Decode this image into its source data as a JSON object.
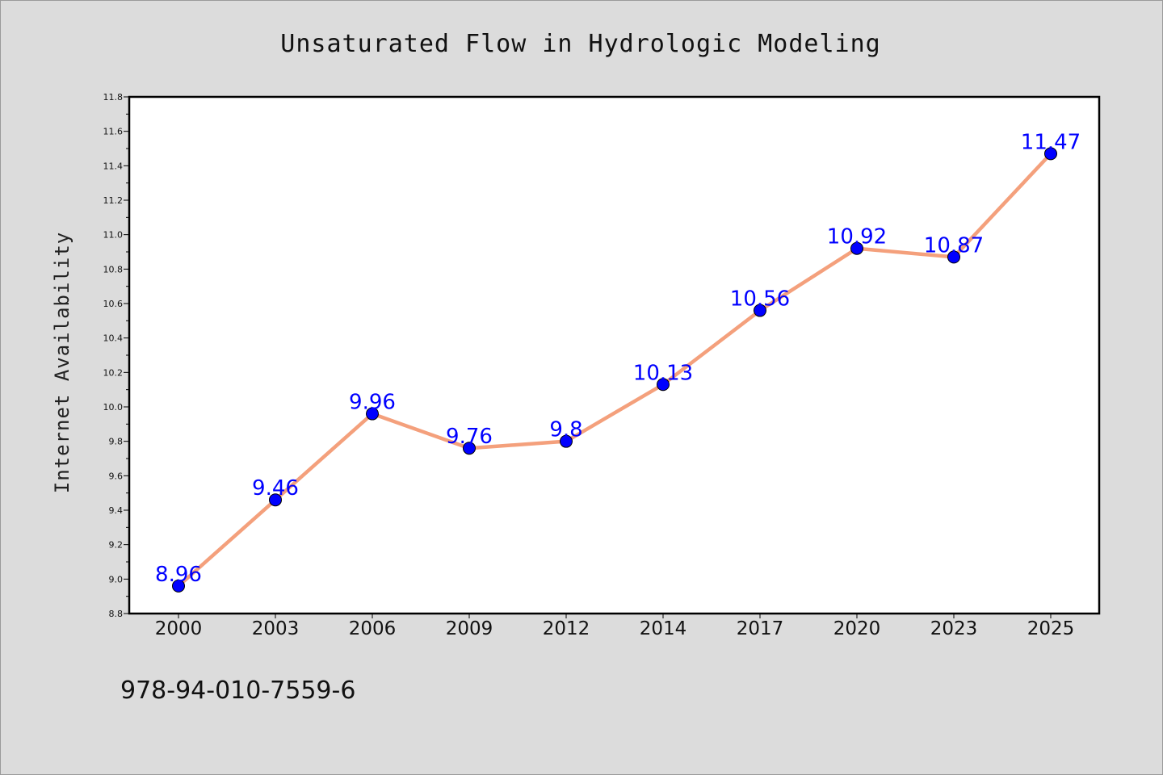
{
  "chart_data": {
    "type": "line",
    "title": "Unsaturated Flow in Hydrologic Modeling",
    "xlabel": "",
    "ylabel": "Internet Availability",
    "categories": [
      "2000",
      "2003",
      "2006",
      "2009",
      "2012",
      "2014",
      "2017",
      "2020",
      "2023",
      "2025"
    ],
    "values": [
      8.96,
      9.46,
      9.96,
      9.76,
      9.8,
      10.13,
      10.56,
      10.92,
      10.87,
      11.47
    ],
    "data_labels": [
      "8.96",
      "9.46",
      "9.96",
      "9.76",
      "9.8",
      "10.13",
      "10.56",
      "10.92",
      "10.87",
      "11.47"
    ],
    "ylim": [
      8.8,
      11.8
    ],
    "yticks": [
      "8.8",
      "9.0",
      "9.2",
      "9.4",
      "9.6",
      "9.8",
      "10.0",
      "10.2",
      "10.4",
      "10.6",
      "10.8",
      "11.0",
      "11.2",
      "11.4",
      "11.6",
      "11.8"
    ],
    "grid": false,
    "legend": "none",
    "line_color": "#f4a07c",
    "marker_color": "#0000ff",
    "label_color": "#0000ff"
  },
  "footer": {
    "isbn": "978-94-010-7559-6"
  }
}
